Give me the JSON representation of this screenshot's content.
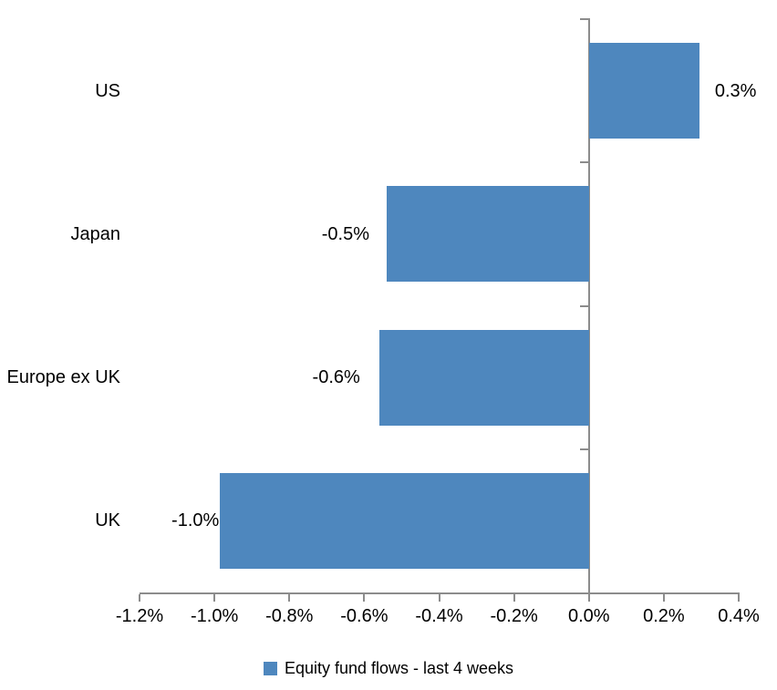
{
  "chart_data": {
    "type": "bar",
    "orientation": "horizontal",
    "categories": [
      "US",
      "Japan",
      "Europe ex UK",
      "UK"
    ],
    "values": [
      0.3,
      -0.5,
      -0.6,
      -1.0
    ],
    "value_labels": [
      "0.3%",
      "-0.5%",
      "-0.6%",
      "-1.0%"
    ],
    "values_precise": [
      0.295,
      -0.54,
      -0.56,
      -0.985
    ],
    "unit": "%",
    "xlim": [
      -1.2,
      0.4
    ],
    "x_tick_step": 0.2,
    "x_tick_labels": [
      "-1.2%",
      "-1.0%",
      "-0.8%",
      "-0.6%",
      "-0.4%",
      "-0.2%",
      "0.0%",
      "0.2%",
      "0.4%"
    ],
    "grid": false,
    "legend": {
      "position": "bottom",
      "label": "Equity fund flows - last 4 weeks"
    },
    "colors": {
      "bar": "#4E87BE",
      "axis": "#8C8C8C",
      "text": "#000000",
      "background": "#FFFFFF"
    }
  }
}
